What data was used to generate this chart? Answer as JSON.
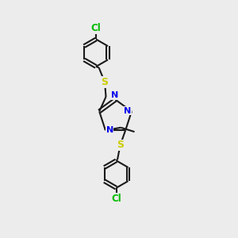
{
  "bg_color": "#ececec",
  "bond_color": "#1a1a1a",
  "N_color": "#0000ee",
  "S_color": "#cccc00",
  "Cl_color": "#00bb00",
  "line_width": 1.5,
  "dbo": 0.05,
  "figsize": [
    3.0,
    3.0
  ],
  "dpi": 100,
  "xlim": [
    0,
    10
  ],
  "ylim": [
    0,
    10
  ]
}
